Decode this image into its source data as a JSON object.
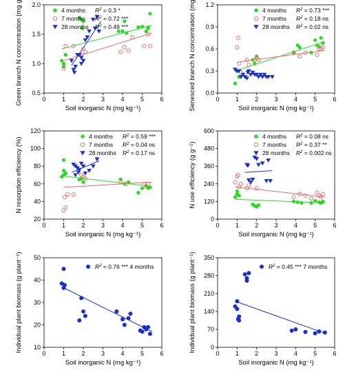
{
  "chart_data": [
    {
      "id": "a",
      "type": "scatter",
      "ylabel": "Green branch N concentration (mg g⁻¹)",
      "xlabel": "Soil inorganic N (mg kg⁻¹)",
      "xlim": [
        0,
        6
      ],
      "ylim": [
        0.5,
        2.0
      ],
      "xticks": [
        0,
        1,
        2,
        3,
        4,
        5,
        6
      ],
      "yticks": [
        0.5,
        1.0,
        1.5,
        2.0
      ],
      "ytick_labels": [
        "0.5",
        "1.0",
        "1.5",
        "2.0"
      ],
      "legend_position": "top-left",
      "series": [
        {
          "name": "4 months",
          "r2_label": "R2 = 0.3 *",
          "marker": "circle-filled",
          "color": "#22dd22",
          "x": [
            0.9,
            1.0,
            1.0,
            1.1,
            1.8,
            1.9,
            2.0,
            1.95,
            3.8,
            4.0,
            4.1,
            4.2,
            4.8,
            5.0,
            5.2,
            5.3,
            5.4,
            5.3
          ],
          "y": [
            1.05,
            1.0,
            0.95,
            1.15,
            1.78,
            1.75,
            1.72,
            1.6,
            1.55,
            1.55,
            1.72,
            1.52,
            1.62,
            1.63,
            1.55,
            1.6,
            1.85,
            1.62
          ],
          "fit": [
            [
              0.9,
              1.25
            ],
            [
              5.5,
              1.65
            ]
          ]
        },
        {
          "name": "7 months",
          "r2_label": "R2 = 0.72 ***",
          "marker": "circle-open",
          "color": "#ee6666",
          "x": [
            1.0,
            1.1,
            1.5,
            1.9,
            2.0,
            2.1,
            3.9,
            4.1,
            4.3,
            4.5,
            5.1,
            5.3,
            5.4
          ],
          "y": [
            0.92,
            1.3,
            1.3,
            1.15,
            1.25,
            1.2,
            1.2,
            1.28,
            1.22,
            1.45,
            1.3,
            1.5,
            1.3
          ],
          "fit": [
            [
              1.0,
              1.05
            ],
            [
              5.5,
              1.52
            ]
          ]
        },
        {
          "name": "28 months",
          "r2_label": "R2 = 0.49 ***",
          "marker": "triangle-down",
          "color": "#1a2fcf",
          "x": [
            1.4,
            1.5,
            1.55,
            1.6,
            1.7,
            1.8,
            1.9,
            1.9,
            2.0,
            2.1,
            2.2,
            2.3,
            2.5,
            2.6,
            2.7,
            2.8
          ],
          "y": [
            1.05,
            0.9,
            0.85,
            0.95,
            1.15,
            1.15,
            1.1,
            1.0,
            1.05,
            1.4,
            1.45,
            1.55,
            1.75,
            1.6,
            1.8,
            1.55
          ],
          "fit": [
            [
              1.4,
              0.97
            ],
            [
              2.9,
              1.72
            ]
          ]
        }
      ]
    },
    {
      "id": "b",
      "type": "scatter",
      "ylabel": "Senesced branch N concentration (mg g⁻¹)",
      "xlabel": "Soil inorganic N (mg kg⁻¹)",
      "xlim": [
        0,
        6
      ],
      "ylim": [
        0.0,
        1.2
      ],
      "xticks": [
        0,
        1,
        2,
        3,
        4,
        5,
        6
      ],
      "yticks": [
        0.0,
        0.3,
        0.6,
        0.9,
        1.2
      ],
      "ytick_labels": [
        "0.0",
        "0.3",
        "0.6",
        "0.9",
        "1.2"
      ],
      "legend_position": "top-right",
      "series": [
        {
          "name": "4 months",
          "r2_label": "R2 = 0.73 ***",
          "marker": "circle-filled",
          "color": "#22dd22",
          "x": [
            0.9,
            1.0,
            1.0,
            1.1,
            1.8,
            1.9,
            2.0,
            3.9,
            4.1,
            4.2,
            4.8,
            5.0,
            5.1,
            5.2,
            5.3,
            5.4
          ],
          "y": [
            0.13,
            0.3,
            0.3,
            0.22,
            0.45,
            0.4,
            0.5,
            0.55,
            0.65,
            0.62,
            0.55,
            0.72,
            0.65,
            0.63,
            0.75,
            0.68
          ],
          "fit": [
            [
              0.9,
              0.3
            ],
            [
              5.5,
              0.7
            ]
          ]
        },
        {
          "name": "7 months",
          "r2_label": "R2 = 0.18 ns",
          "marker": "circle-open",
          "color": "#ee6666",
          "x": [
            1.0,
            1.05,
            1.1,
            1.2,
            1.5,
            1.6,
            1.9,
            2.0,
            2.1,
            3.9,
            4.2,
            4.5,
            5.1,
            5.2,
            5.3,
            5.4
          ],
          "y": [
            0.62,
            0.75,
            0.4,
            0.28,
            0.45,
            0.38,
            0.45,
            0.48,
            0.45,
            0.55,
            0.5,
            0.55,
            0.52,
            0.6,
            0.6,
            0.62
          ],
          "fit": [
            [
              1.0,
              0.42
            ],
            [
              5.5,
              0.58
            ]
          ]
        },
        {
          "name": "28 months",
          "r2_label": "R2 = 0.02 ns",
          "marker": "triangle-down",
          "color": "#1a2fcf",
          "x": [
            0.9,
            1.0,
            1.1,
            1.2,
            1.3,
            1.4,
            1.5,
            1.55,
            1.6,
            1.7,
            1.8,
            1.9,
            2.0,
            2.1,
            2.2,
            2.3,
            2.4,
            2.5,
            2.6,
            2.8
          ],
          "y": [
            0.32,
            0.3,
            0.3,
            0.22,
            0.25,
            0.22,
            0.2,
            0.28,
            0.3,
            0.25,
            0.28,
            0.25,
            0.25,
            0.22,
            0.25,
            0.22,
            0.25,
            0.22,
            0.22,
            0.22
          ],
          "fit": []
        }
      ]
    },
    {
      "id": "c",
      "type": "scatter",
      "ylabel": "N resorption efficiency (%)",
      "xlabel": "Soil inorganic N (mg  kg⁻¹)",
      "xlim": [
        0,
        6
      ],
      "ylim": [
        20,
        120
      ],
      "xticks": [
        0,
        1,
        2,
        3,
        4,
        5,
        6
      ],
      "yticks": [
        20,
        40,
        60,
        80,
        100,
        120
      ],
      "ytick_labels": [
        "20",
        "40",
        "60",
        "80",
        "100",
        "120"
      ],
      "legend_position": "top-right",
      "series": [
        {
          "name": "4 months",
          "r2_label": "R2 = 0.59 ***",
          "marker": "circle-filled",
          "color": "#22dd22",
          "x": [
            0.9,
            1.0,
            1.0,
            1.1,
            1.8,
            1.9,
            2.0,
            3.9,
            4.1,
            4.3,
            4.8,
            5.0,
            5.2,
            5.3,
            5.4,
            1.0
          ],
          "y": [
            68,
            70,
            75,
            72,
            65,
            66,
            62,
            65,
            60,
            62,
            50,
            55,
            58,
            55,
            56,
            87
          ],
          "fit": [
            [
              0.9,
              69
            ],
            [
              5.5,
              57
            ]
          ]
        },
        {
          "name": "7 months",
          "r2_label": "R2 = 0.04 ns",
          "marker": "circle-open",
          "color": "#ee6666",
          "x": [
            1.0,
            1.05,
            1.1,
            1.2,
            1.5,
            1.9,
            2.0,
            2.1,
            3.9,
            4.2,
            5.1,
            5.2,
            5.3
          ],
          "y": [
            30,
            45,
            33,
            48,
            48,
            70,
            68,
            66,
            62,
            60,
            60,
            57,
            60
          ],
          "fit": [
            [
              1.0,
              56
            ],
            [
              5.5,
              62
            ]
          ]
        },
        {
          "name": "28 months",
          "r2_label": "R2 = 0.17 ns",
          "marker": "triangle-down",
          "color": "#1a2fcf",
          "x": [
            1.5,
            1.6,
            1.7,
            1.8,
            1.9,
            2.0,
            2.1,
            2.3,
            2.5,
            2.7,
            1.6,
            1.75
          ],
          "y": [
            82,
            80,
            78,
            76,
            83,
            80,
            72,
            75,
            80,
            88,
            70,
            73
          ],
          "fit": [
            [
              1.4,
              73
            ],
            [
              2.8,
              86
            ]
          ]
        }
      ]
    },
    {
      "id": "d",
      "type": "scatter",
      "ylabel": "N use efficiency (g g⁻¹)",
      "xlabel": "Soil inorganic N (mg  kg⁻¹)",
      "xlim": [
        0,
        6
      ],
      "ylim": [
        0,
        600
      ],
      "xticks": [
        0,
        1,
        2,
        3,
        4,
        5,
        6
      ],
      "yticks": [
        0,
        120,
        240,
        360,
        480,
        600
      ],
      "ytick_labels": [
        "0",
        "120",
        "240",
        "360",
        "480",
        "600"
      ],
      "legend_position": "top-right",
      "series": [
        {
          "name": "4 months",
          "r2_label": "R2 = 0.08 ns",
          "marker": "circle-filled",
          "color": "#22dd22",
          "x": [
            0.9,
            1.0,
            1.0,
            1.1,
            1.8,
            1.9,
            2.0,
            2.1,
            3.9,
            4.1,
            4.3,
            4.8,
            5.0,
            5.2,
            5.3,
            5.4
          ],
          "y": [
            150,
            170,
            190,
            160,
            100,
            90,
            85,
            95,
            120,
            115,
            110,
            110,
            125,
            115,
            110,
            120
          ],
          "fit": [
            [
              0.9,
              135
            ],
            [
              5.5,
              110
            ]
          ]
        },
        {
          "name": "7 months",
          "r2_label": "R2 = 0.37 **",
          "marker": "circle-open",
          "color": "#ee6666",
          "x": [
            0.9,
            1.0,
            1.05,
            1.1,
            1.2,
            1.5,
            1.6,
            2.0,
            3.9,
            4.2,
            4.5,
            4.8,
            5.1,
            5.2,
            5.3,
            5.4
          ],
          "y": [
            250,
            290,
            300,
            220,
            240,
            210,
            230,
            210,
            150,
            170,
            160,
            140,
            180,
            160,
            150,
            170
          ],
          "fit": [
            [
              0.9,
              220
            ],
            [
              5.5,
              150
            ]
          ]
        },
        {
          "name": "28 months",
          "r2_label": "R2 = 0.002 ns",
          "marker": "triangle-down",
          "color": "#1a2fcf",
          "x": [
            1.5,
            1.55,
            1.6,
            1.7,
            1.8,
            1.9,
            2.0,
            2.1,
            2.3,
            2.5,
            2.6,
            2.7
          ],
          "y": [
            370,
            365,
            265,
            250,
            270,
            420,
            410,
            370,
            380,
            260,
            400,
            260
          ],
          "fit": [
            [
              1.4,
              318
            ],
            [
              2.8,
              330
            ]
          ]
        }
      ]
    },
    {
      "id": "e",
      "type": "scatter",
      "ylabel": "Individual plant biomass (g plant⁻¹)",
      "xlabel": "Soil inorganic N (mg  kg⁻¹)",
      "xlim": [
        0,
        6
      ],
      "ylim": [
        10,
        50
      ],
      "xticks": [
        0,
        1,
        2,
        3,
        4,
        5,
        6
      ],
      "yticks": [
        10,
        20,
        30,
        40,
        50
      ],
      "ytick_labels": [
        "10",
        "20",
        "30",
        "40",
        "50"
      ],
      "legend_position": "top-right",
      "series": [
        {
          "name": "4 months",
          "r2_label": "R2 = 0.76 ***  4 months",
          "marker": "circle-filled",
          "color": "#1a2fcf",
          "x": [
            0.9,
            1.0,
            1.0,
            1.05,
            1.9,
            2.0,
            2.1,
            1.8,
            3.7,
            4.0,
            4.1,
            4.3,
            4.4,
            4.9,
            5.0,
            5.1,
            5.2,
            5.3,
            5.4
          ],
          "y": [
            38.5,
            45,
            36.5,
            37.8,
            32,
            26,
            24,
            22,
            26,
            22.5,
            20,
            23,
            25,
            17.5,
            17,
            19,
            18,
            19,
            16
          ],
          "fit": [
            [
              0.9,
              37
            ],
            [
              5.5,
              17
            ]
          ]
        }
      ]
    },
    {
      "id": "f",
      "type": "scatter",
      "ylabel": "Individual plant biomass (g plant⁻¹)",
      "xlabel": "Soil inorganic N (mg  kg⁻¹)",
      "xlim": [
        0,
        6
      ],
      "ylim": [
        0,
        350
      ],
      "xticks": [
        0,
        1,
        2,
        3,
        4,
        5,
        6
      ],
      "yticks": [
        0,
        70,
        140,
        210,
        280,
        350
      ],
      "ytick_labels": [
        "0",
        "70",
        "140",
        "210",
        "280",
        "350"
      ],
      "legend_position": "top-right",
      "series": [
        {
          "name": "7 months",
          "r2_label": "R2 = 0.45 ***  7 months",
          "marker": "circle-filled",
          "color": "#1a2fcf",
          "x": [
            0.9,
            1.0,
            1.0,
            1.05,
            1.1,
            1.1,
            1.4,
            1.5,
            1.5,
            1.6,
            3.8,
            4.0,
            4.5,
            5.0,
            5.2,
            5.5
          ],
          "y": [
            160,
            150,
            180,
            110,
            120,
            105,
            285,
            260,
            270,
            290,
            65,
            70,
            60,
            55,
            62,
            58
          ],
          "fit": [
            [
              0.9,
              180
            ],
            [
              5.5,
              55
            ]
          ]
        }
      ]
    }
  ]
}
